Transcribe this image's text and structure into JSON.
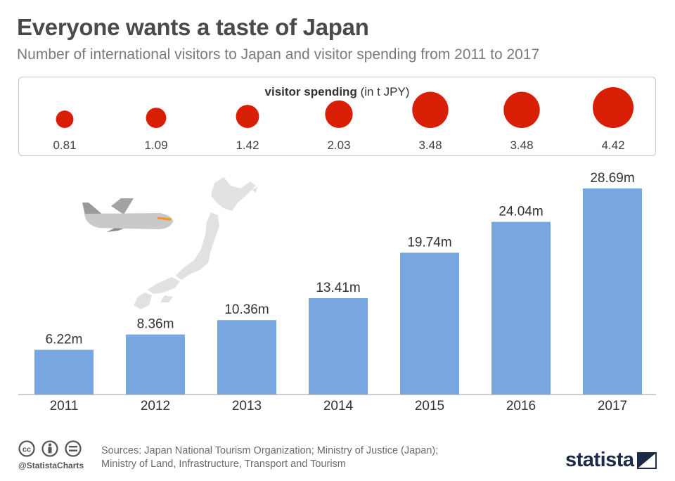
{
  "header": {
    "title": "Everyone wants a taste of Japan",
    "subtitle": "Number of international visitors to Japan and visitor spending from 2011 to 2017"
  },
  "spending": {
    "label_bold": "visitor spending",
    "label_unit": "(in t JPY)",
    "values": [
      0.81,
      1.09,
      1.42,
      2.03,
      3.48,
      3.48,
      4.42
    ],
    "labels": [
      "0.81",
      "1.09",
      "1.42",
      "2.03",
      "3.48",
      "3.48",
      "4.42"
    ],
    "color": "#d81e05"
  },
  "chart_data": {
    "type": "bar",
    "title": "Everyone wants a taste of Japan",
    "categories": [
      "2011",
      "2012",
      "2013",
      "2014",
      "2015",
      "2016",
      "2017"
    ],
    "values": [
      6.22,
      8.36,
      10.36,
      13.41,
      19.74,
      24.04,
      28.69
    ],
    "value_labels": [
      "6.22m",
      "8.36m",
      "10.36m",
      "13.41m",
      "19.74m",
      "24.04m",
      "28.69m"
    ],
    "ylim": [
      0,
      28.69
    ],
    "grid": false,
    "bar_color": "#77a6e0"
  },
  "footer": {
    "handle": "@StatistaCharts",
    "sources_line1": "Sources: Japan National Tourism Organization; Ministry of Justice (Japan);",
    "sources_line2": "Ministry of Land, Infrastructure, Transport and Tourism",
    "logo_text": "statista",
    "icons": [
      "cc-icon",
      "attribution-icon",
      "no-derivatives-icon"
    ]
  }
}
